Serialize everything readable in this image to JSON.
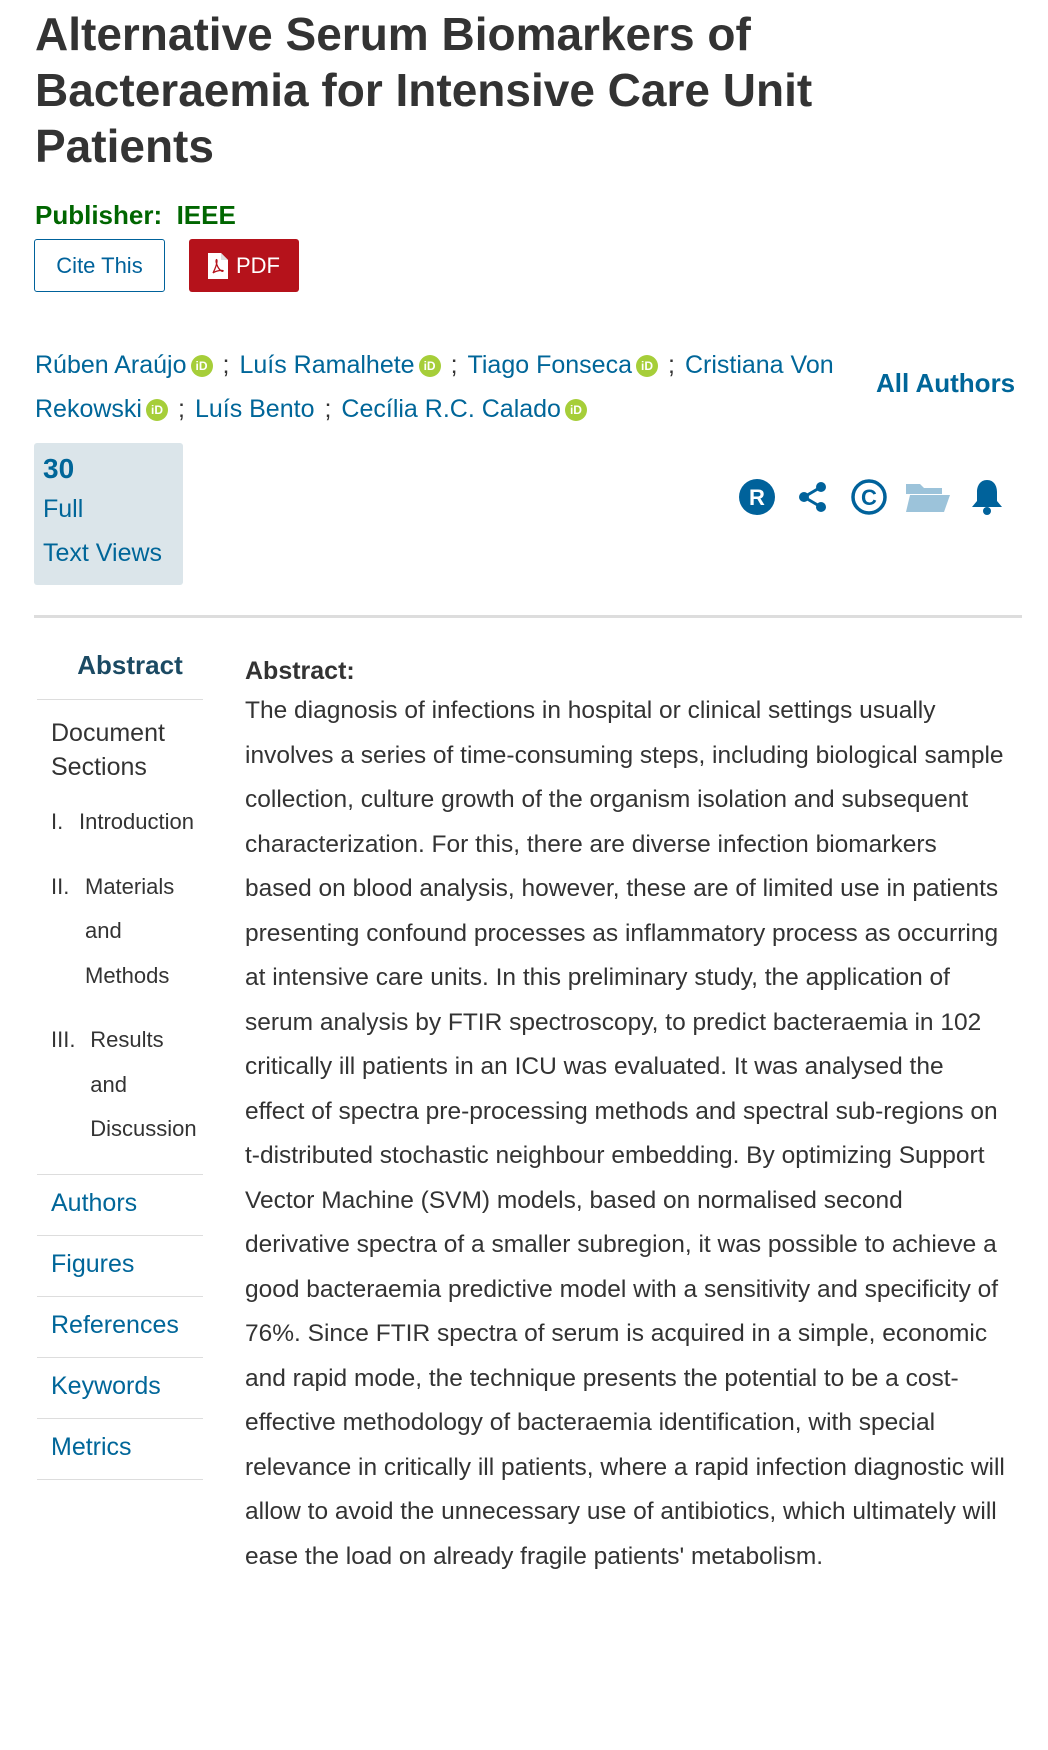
{
  "title": "Alternative Serum Biomarkers of Bacteraemia for Intensive Care Unit Patients",
  "publisher": "Publisher:  IEEE",
  "buttons": {
    "cite": "Cite This",
    "pdf": "PDF"
  },
  "authors": [
    {
      "name": "Rúben Araújo",
      "orcid": true
    },
    {
      "name": "Luís Ramalhete",
      "orcid": true
    },
    {
      "name": "Tiago Fonseca",
      "orcid": true
    },
    {
      "name": "Cristiana Von Rekowski",
      "orcid": true
    },
    {
      "name": "Luís Bento",
      "orcid": false
    },
    {
      "name": "Cecília R.C. Calado",
      "orcid": true
    }
  ],
  "orcid_label": "iD",
  "all_authors": "All Authors",
  "metrics": {
    "count": "30",
    "label1": "Full",
    "label2": "Text Views"
  },
  "action_icons": [
    "r-icon",
    "share-icon",
    "copyright-icon",
    "folder-icon",
    "bell-icon"
  ],
  "sidebar": {
    "heading": "Abstract",
    "doc_sections": "Document Sections",
    "toc": [
      {
        "num": "I.",
        "label": "Introduction"
      },
      {
        "num": "II.",
        "label": "Materials and Methods"
      },
      {
        "num": "III.",
        "label": "Results and Discussion"
      }
    ],
    "links": [
      "Authors",
      "Figures",
      "References",
      "Keywords",
      "Metrics"
    ]
  },
  "abstract": {
    "heading": "Abstract:",
    "text": "The diagnosis of infections in hospital or clinical settings usually involves a series of time-consuming steps, including biological sample collection, culture growth of the organism isolation and subsequent characterization. For this, there are diverse infection biomarkers based on blood analysis, however, these are of limited use in patients presenting confound processes as inflammatory process as occurring at intensive care units. In this preliminary study, the application of serum analysis by FTIR spectroscopy, to predict bacteraemia in 102 critically ill patients in an ICU was evaluated. It was analysed the effect of spectra pre-processing methods and spectral sub-regions on t-distributed stochastic neighbour embedding. By optimizing Support Vector Machine (SVM) models, based on normalised second derivative spectra of a smaller subregion, it was possible to achieve a good bacteraemia predictive model with a sensitivity and specificity of 76%. Since FTIR spectra of serum is acquired in a simple, economic and rapid mode, the technique presents the potential to be a cost-effective methodology of bacteraemia identification, with special relevance in critically ill patients, where a rapid infection diagnostic will allow to avoid the unnecessary use of antibiotics, which ultimately will ease the load on already fragile patients' metabolism."
  },
  "colors": {
    "link": "#006699",
    "publisher": "#006600",
    "pdf": "#b5121b",
    "orcid": "#a6ce39",
    "metrics_bg": "#dbe5ea"
  }
}
